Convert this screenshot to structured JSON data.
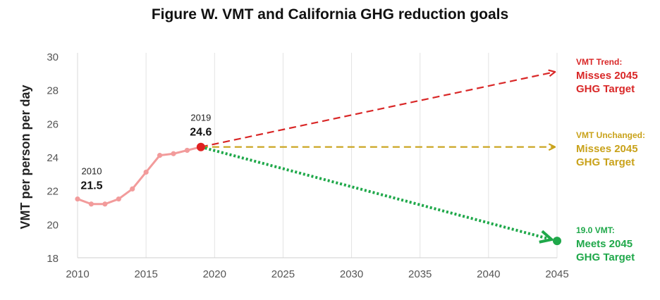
{
  "title": "Figure W. VMT and California GHG reduction goals",
  "chart_data": {
    "type": "line",
    "title": "Figure W. VMT and California GHG reduction goals",
    "xlabel": "",
    "ylabel": "VMT per person per day",
    "xlim": [
      2010,
      2045
    ],
    "ylim": [
      18,
      30
    ],
    "x_ticks": [
      "2010",
      "2015",
      "2020",
      "2025",
      "2030",
      "2035",
      "2040",
      "2045"
    ],
    "y_ticks": [
      "18",
      "20",
      "22",
      "24",
      "26",
      "28",
      "30"
    ],
    "grid": "vertical",
    "series": [
      {
        "color": "#f29b9b",
        "x": [
          2010,
          2011,
          2012,
          2013,
          2014,
          2015,
          2016,
          2017,
          2018,
          2019
        ],
        "y": [
          21.5,
          21.2,
          21.2,
          21.5,
          22.1,
          23.1,
          24.1,
          24.2,
          24.4,
          24.6
        ]
      },
      {
        "name": "VMT Trend",
        "color": "#d92727",
        "style": "dashed",
        "x": [
          2019,
          2045
        ],
        "y": [
          24.6,
          29.1
        ]
      },
      {
        "name": "VMT Unchanged",
        "color": "#c9a21a",
        "style": "dashed",
        "x": [
          2019,
          2045
        ],
        "y": [
          24.6,
          24.6
        ]
      },
      {
        "name": "19.0 VMT",
        "color": "#1fa84a",
        "style": "dotted",
        "x": [
          2019,
          2045
        ],
        "y": [
          24.6,
          19.0
        ]
      }
    ],
    "annotations": [
      {
        "x": 2010,
        "y": 21.5,
        "year": "2010",
        "value": "21.5"
      },
      {
        "x": 2019,
        "y": 24.6,
        "year": "2019",
        "value": "24.6"
      }
    ],
    "end_labels": [
      {
        "line1": "VMT Trend:",
        "line2": "Misses 2045",
        "line3": "GHG Target",
        "color": "#d92727"
      },
      {
        "line1": "VMT Unchanged:",
        "line2": "Misses 2045",
        "line3": "GHG Target",
        "color": "#c9a21a"
      },
      {
        "line1": "19.0 VMT:",
        "line2": "Meets 2045",
        "line3": "GHG Target",
        "color": "#1fa84a"
      }
    ]
  }
}
